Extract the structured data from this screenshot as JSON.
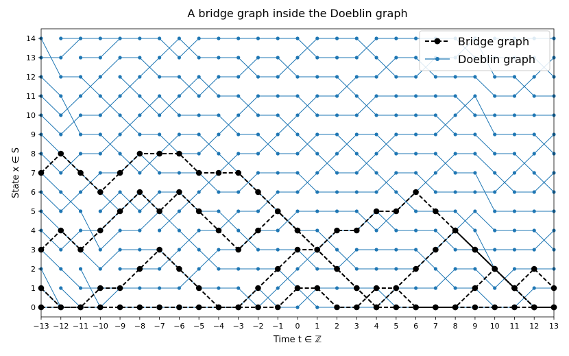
{
  "chart_data": {
    "type": "line",
    "title": "A bridge graph inside the Doeblin graph",
    "xlabel": "Time t ∈ ℤ",
    "ylabel": "State x ∈ S",
    "xlim": [
      -13,
      13
    ],
    "ylim": [
      -0.5,
      14.5
    ],
    "x_ticks": [
      -13,
      -12,
      -11,
      -10,
      -9,
      -8,
      -7,
      -6,
      -5,
      -4,
      -3,
      -2,
      -1,
      0,
      1,
      2,
      3,
      4,
      5,
      6,
      7,
      8,
      9,
      10,
      11,
      12,
      13
    ],
    "x_tick_labels": [
      "−13",
      "−12",
      "−11",
      "−10",
      "−9",
      "−8",
      "−7",
      "−6",
      "−5",
      "−4",
      "−3",
      "−2",
      "−1",
      "0",
      "1",
      "2",
      "3",
      "4",
      "5",
      "6",
      "7",
      "8",
      "9",
      "10",
      "11",
      "12",
      "13"
    ],
    "y_ticks": [
      0,
      1,
      2,
      3,
      4,
      5,
      6,
      7,
      8,
      9,
      10,
      11,
      12,
      13,
      14
    ],
    "y_tick_labels": [
      "0",
      "1",
      "2",
      "3",
      "4",
      "5",
      "6",
      "7",
      "8",
      "9",
      "10",
      "11",
      "12",
      "13",
      "14"
    ],
    "grid": false,
    "legend": {
      "position": "top-right",
      "entries": [
        {
          "label": "Bridge graph",
          "color": "#000000",
          "style": "dashed-marker"
        },
        {
          "label": "Doeblin graph",
          "color": "#1f77b4",
          "style": "solid-marker"
        }
      ]
    },
    "doeblin_graph": {
      "color": "#1f77b4",
      "t_start": -13,
      "transitions": [
        [
          0,
          0,
          0,
          2,
          3,
          4,
          5,
          6,
          7,
          8,
          9,
          10,
          11,
          13,
          12
        ],
        [
          0,
          0,
          1,
          4,
          3,
          6,
          5,
          8,
          7,
          10,
          11,
          9,
          12,
          14,
          14
        ],
        [
          0,
          1,
          0,
          2,
          4,
          3,
          7,
          6,
          8,
          9,
          10,
          12,
          11,
          13,
          14
        ],
        [
          1,
          1,
          3,
          4,
          5,
          6,
          5,
          7,
          9,
          8,
          11,
          10,
          13,
          14,
          14
        ],
        [
          0,
          1,
          2,
          3,
          4,
          6,
          5,
          8,
          7,
          10,
          9,
          12,
          11,
          13,
          14
        ],
        [
          0,
          1,
          2,
          3,
          5,
          6,
          5,
          8,
          7,
          9,
          11,
          10,
          13,
          12,
          14
        ],
        [
          0,
          1,
          3,
          2,
          5,
          4,
          6,
          7,
          9,
          8,
          11,
          10,
          12,
          14,
          13
        ],
        [
          0,
          2,
          1,
          4,
          3,
          6,
          5,
          7,
          8,
          9,
          10,
          12,
          11,
          14,
          13
        ],
        [
          0,
          1,
          3,
          2,
          4,
          5,
          7,
          6,
          9,
          8,
          10,
          12,
          11,
          13,
          14
        ],
        [
          0,
          1,
          2,
          3,
          5,
          4,
          6,
          8,
          7,
          10,
          9,
          11,
          12,
          13,
          14
        ],
        [
          1,
          0,
          2,
          4,
          3,
          5,
          7,
          6,
          8,
          9,
          11,
          10,
          13,
          12,
          14
        ],
        [
          1,
          0,
          2,
          3,
          4,
          6,
          5,
          7,
          9,
          8,
          10,
          11,
          12,
          13,
          14
        ],
        [
          0,
          2,
          1,
          3,
          5,
          4,
          6,
          7,
          8,
          10,
          9,
          11,
          13,
          12,
          14
        ],
        [
          1,
          0,
          3,
          2,
          4,
          5,
          7,
          6,
          9,
          8,
          11,
          10,
          12,
          14,
          13
        ],
        [
          0,
          1,
          2,
          4,
          3,
          5,
          6,
          8,
          7,
          9,
          10,
          11,
          12,
          13,
          14
        ],
        [
          0,
          1,
          3,
          2,
          4,
          5,
          6,
          7,
          9,
          8,
          10,
          12,
          11,
          13,
          14
        ],
        [
          0,
          1,
          2,
          3,
          5,
          4,
          6,
          8,
          7,
          9,
          11,
          10,
          12,
          14,
          13
        ],
        [
          1,
          0,
          2,
          3,
          5,
          4,
          7,
          6,
          9,
          8,
          10,
          11,
          13,
          12,
          14
        ],
        [
          0,
          1,
          2,
          3,
          4,
          6,
          5,
          7,
          8,
          9,
          10,
          11,
          12,
          13,
          14
        ],
        [
          0,
          1,
          3,
          2,
          4,
          5,
          7,
          6,
          8,
          9,
          10,
          11,
          13,
          12,
          14
        ],
        [
          0,
          2,
          1,
          4,
          3,
          5,
          6,
          8,
          7,
          10,
          9,
          11,
          12,
          13,
          14
        ],
        [
          0,
          1,
          2,
          3,
          5,
          4,
          6,
          7,
          8,
          9,
          11,
          10,
          12,
          14,
          13
        ],
        [
          0,
          0,
          1,
          3,
          2,
          4,
          6,
          5,
          7,
          8,
          10,
          9,
          11,
          13,
          12
        ],
        [
          0,
          2,
          1,
          3,
          4,
          5,
          7,
          6,
          8,
          9,
          10,
          11,
          12,
          13,
          14
        ],
        [
          1,
          0,
          2,
          3,
          4,
          5,
          6,
          8,
          7,
          9,
          10,
          12,
          11,
          13,
          14
        ],
        [
          0,
          1,
          2,
          4,
          3,
          5,
          7,
          6,
          9,
          8,
          10,
          11,
          13,
          12,
          14
        ]
      ]
    },
    "bridge_graph": {
      "color": "#000000",
      "paths": [
        {
          "x": [
            -13,
            -12,
            -11,
            -10,
            -9,
            -8,
            -7,
            -6,
            -5,
            -4,
            -3,
            -2,
            -1,
            0,
            1,
            2,
            3,
            4,
            5,
            6,
            7,
            8,
            9,
            10,
            11,
            12,
            13
          ],
          "y": [
            7,
            8,
            7,
            6,
            7,
            8,
            8,
            8,
            7,
            7,
            7,
            6,
            5,
            4,
            3,
            4,
            4,
            5,
            5,
            6,
            5,
            4,
            3,
            2,
            1,
            2,
            1
          ]
        },
        {
          "x": [
            -13,
            -12,
            -11,
            -10,
            -9,
            -8,
            -7,
            -6,
            -5,
            -4,
            -3,
            -2,
            -1,
            0,
            1,
            2,
            3,
            4,
            5,
            6,
            7,
            8,
            9,
            10,
            11,
            12,
            13
          ],
          "y": [
            3,
            4,
            3,
            4,
            5,
            6,
            5,
            6,
            5,
            4,
            3,
            4,
            5,
            4,
            3,
            2,
            1,
            0,
            1,
            2,
            3,
            4,
            3,
            2,
            1,
            0,
            0
          ]
        },
        {
          "x": [
            -13,
            -12,
            -11,
            -10,
            -9,
            -8,
            -7,
            -6,
            -5,
            -4,
            -3,
            -2,
            -1,
            0,
            1,
            2,
            3,
            4,
            5,
            6,
            7,
            8,
            9,
            10,
            11,
            12,
            13
          ],
          "y": [
            1,
            0,
            0,
            1,
            1,
            2,
            3,
            2,
            1,
            0,
            0,
            1,
            2,
            3,
            3,
            2,
            1,
            0,
            0,
            0,
            0,
            0,
            1,
            2,
            1,
            0,
            0
          ]
        },
        {
          "x": [
            -13,
            -12,
            -11,
            -10,
            -9,
            -8,
            -7,
            -6,
            -5,
            -4,
            -3,
            -2,
            -1,
            0,
            1,
            2,
            3,
            4,
            5,
            6,
            7,
            8,
            9,
            10,
            11,
            12,
            13
          ],
          "y": [
            0,
            0,
            0,
            0,
            0,
            0,
            0,
            0,
            0,
            0,
            0,
            0,
            0,
            1,
            1,
            0,
            0,
            1,
            1,
            0,
            0,
            0,
            0,
            0,
            0,
            0,
            0
          ]
        }
      ]
    }
  }
}
